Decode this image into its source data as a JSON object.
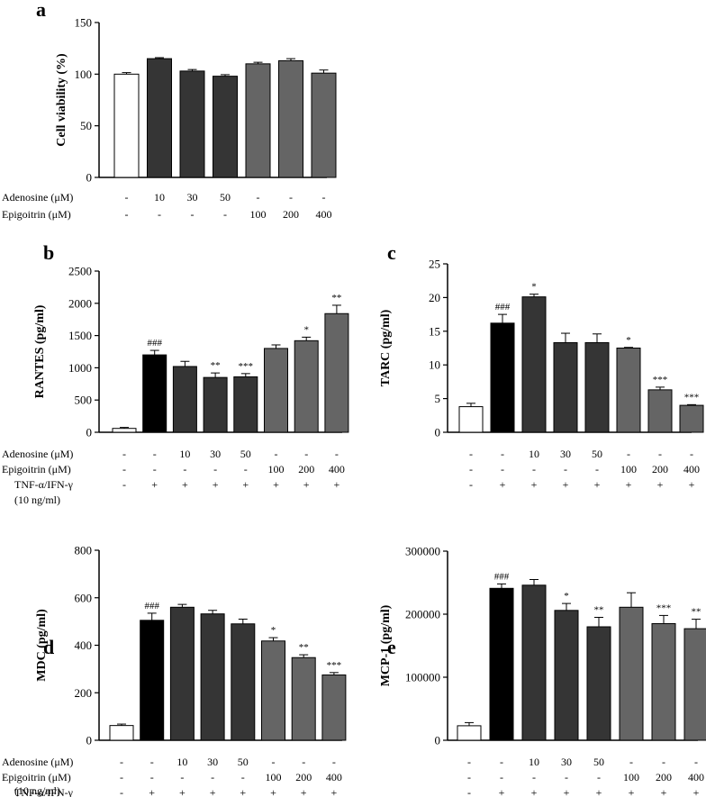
{
  "colors": {
    "control": "#ffffff",
    "positive": "#000000",
    "adenosine": "#353535",
    "epigoitrin": "#656565"
  },
  "row_labels": {
    "adenosine": "Adenosine (μM)",
    "epigoitrin": "Epigoitrin (μM)",
    "stim1": "TNF-α/IFN-γ",
    "stim2": "(10 ng/ml)"
  },
  "chart_data": [
    {
      "panel": "a",
      "type": "bar",
      "ylabel": "Cell viability (%)",
      "ylim": [
        0,
        150
      ],
      "yticks": [
        0,
        50,
        100,
        150
      ],
      "values": [
        100,
        115,
        103,
        98,
        110,
        113,
        101
      ],
      "errors": [
        1.5,
        1,
        1.5,
        1.5,
        1.5,
        2,
        3
      ],
      "sig": [
        "",
        "",
        "",
        "",
        "",
        "",
        ""
      ],
      "bar_groups": [
        "control",
        "adenosine",
        "adenosine",
        "adenosine",
        "epigoitrin",
        "epigoitrin",
        "epigoitrin"
      ],
      "rows": {
        "adenosine": [
          "-",
          "10",
          "30",
          "50",
          "-",
          "-",
          "-"
        ],
        "epigoitrin": [
          "-",
          "-",
          "-",
          "-",
          "100",
          "200",
          "400"
        ]
      }
    },
    {
      "panel": "b",
      "type": "bar",
      "ylabel": "RANTES (pg/ml)",
      "ylim": [
        0,
        2500
      ],
      "yticks": [
        0,
        500,
        1000,
        1500,
        2000,
        2500
      ],
      "values": [
        60,
        1200,
        1020,
        850,
        860,
        1300,
        1420,
        1840
      ],
      "errors": [
        15,
        70,
        80,
        70,
        50,
        55,
        55,
        130
      ],
      "sig": [
        "",
        "###",
        "",
        "**",
        "***",
        "",
        "*",
        "**"
      ],
      "bar_groups": [
        "control",
        "positive",
        "adenosine",
        "adenosine",
        "adenosine",
        "epigoitrin",
        "epigoitrin",
        "epigoitrin"
      ],
      "rows": {
        "adenosine": [
          "-",
          "-",
          "10",
          "30",
          "50",
          "-",
          "-",
          "-"
        ],
        "epigoitrin": [
          "-",
          "-",
          "-",
          "-",
          "-",
          "100",
          "200",
          "400"
        ],
        "stim": [
          "-",
          "+",
          "+",
          "+",
          "+",
          "+",
          "+",
          "+"
        ]
      }
    },
    {
      "panel": "c",
      "type": "bar",
      "ylabel": "TARC (pg/ml)",
      "ylim": [
        0,
        25
      ],
      "yticks": [
        0,
        5,
        10,
        15,
        20,
        25
      ],
      "values": [
        3.8,
        16.2,
        20.1,
        13.3,
        13.3,
        12.5,
        6.3,
        4.0
      ],
      "errors": [
        0.5,
        1.3,
        0.4,
        1.4,
        1.3,
        0.1,
        0.4,
        0.1
      ],
      "sig": [
        "",
        "###",
        "*",
        "",
        "",
        "*",
        "***",
        "***"
      ],
      "bar_groups": [
        "control",
        "positive",
        "adenosine",
        "adenosine",
        "adenosine",
        "epigoitrin",
        "epigoitrin",
        "epigoitrin"
      ],
      "rows": {
        "adenosine": [
          "-",
          "-",
          "10",
          "30",
          "50",
          "-",
          "-",
          "-"
        ],
        "epigoitrin": [
          "-",
          "-",
          "-",
          "-",
          "-",
          "100",
          "200",
          "400"
        ],
        "stim": [
          "-",
          "+",
          "+",
          "+",
          "+",
          "+",
          "+",
          "+"
        ]
      }
    },
    {
      "panel": "d",
      "type": "bar",
      "ylabel": "MDC (pg/ml)",
      "ylim": [
        0,
        800
      ],
      "yticks": [
        0,
        200,
        400,
        600,
        800
      ],
      "values": [
        62,
        505,
        560,
        532,
        490,
        418,
        348,
        275
      ],
      "errors": [
        6,
        30,
        12,
        15,
        20,
        14,
        12,
        10
      ],
      "sig": [
        "",
        "###",
        "",
        "",
        "",
        "*",
        "**",
        "***"
      ],
      "bar_groups": [
        "control",
        "positive",
        "adenosine",
        "adenosine",
        "adenosine",
        "epigoitrin",
        "epigoitrin",
        "epigoitrin"
      ],
      "rows": {
        "adenosine": [
          "-",
          "-",
          "10",
          "30",
          "50",
          "-",
          "-",
          "-"
        ],
        "epigoitrin": [
          "-",
          "-",
          "-",
          "-",
          "-",
          "100",
          "200",
          "400"
        ],
        "stim": [
          "-",
          "+",
          "+",
          "+",
          "+",
          "+",
          "+",
          "+"
        ]
      }
    },
    {
      "panel": "e",
      "type": "bar",
      "ylabel": "MCP-1 (pg/ml)",
      "ylim": [
        0,
        300000
      ],
      "yticks": [
        0,
        100000,
        200000,
        300000
      ],
      "values": [
        23000,
        241000,
        246000,
        206000,
        180000,
        211000,
        185000,
        177000
      ],
      "errors": [
        5000,
        7000,
        9000,
        11000,
        15000,
        23000,
        13000,
        15000
      ],
      "sig": [
        "",
        "###",
        "",
        "*",
        "**",
        "",
        "***",
        "**"
      ],
      "bar_groups": [
        "control",
        "positive",
        "adenosine",
        "adenosine",
        "adenosine",
        "epigoitrin",
        "epigoitrin",
        "epigoitrin"
      ],
      "rows": {
        "adenosine": [
          "-",
          "-",
          "10",
          "30",
          "50",
          "-",
          "-",
          "-"
        ],
        "epigoitrin": [
          "-",
          "-",
          "-",
          "-",
          "-",
          "100",
          "200",
          "400"
        ],
        "stim": [
          "-",
          "+",
          "+",
          "+",
          "+",
          "+",
          "+",
          "+"
        ]
      }
    }
  ]
}
